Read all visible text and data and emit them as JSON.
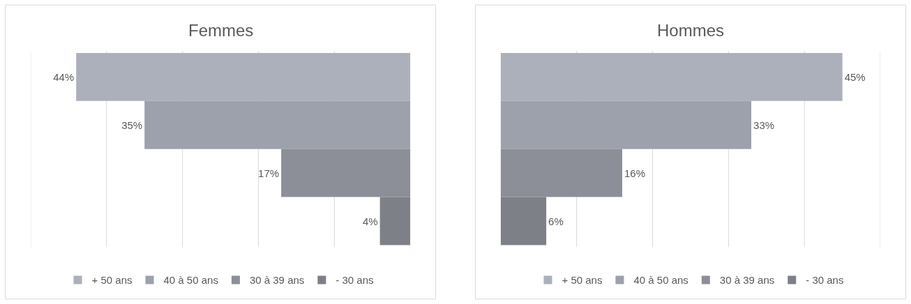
{
  "chart_data": [
    {
      "type": "bar",
      "title": "Femmes",
      "orientation": "horizontal",
      "categories": [
        null
      ],
      "series": [
        {
          "name": "+ 50 ans",
          "color": "#acb0bb",
          "values": [
            44
          ],
          "value_labels": [
            "44%"
          ]
        },
        {
          "name": "40 à 50 ans",
          "color": "#9da1ab",
          "values": [
            35
          ],
          "value_labels": [
            "35%"
          ]
        },
        {
          "name": "30 à 39 ans",
          "color": "#8c8f97",
          "values": [
            17
          ],
          "value_labels": [
            "17%"
          ]
        },
        {
          "name": "- 30 ans",
          "color": "#7d8086",
          "values": [
            4
          ],
          "value_labels": [
            "4%"
          ]
        }
      ],
      "xlim": [
        50,
        0
      ],
      "xticks": [
        {
          "value": 0,
          "label": null
        },
        {
          "value": 10,
          "label": null
        },
        {
          "value": 20,
          "label": null
        },
        {
          "value": 30,
          "label": null
        },
        {
          "value": 40,
          "label": null
        },
        {
          "value": 50,
          "label": null
        }
      ],
      "grid": "x",
      "legend": "bottom"
    },
    {
      "type": "bar",
      "title": "Hommes",
      "orientation": "horizontal",
      "categories": [
        null
      ],
      "series": [
        {
          "name": "+ 50 ans",
          "color": "#acb0bb",
          "values": [
            45
          ],
          "value_labels": [
            "45%"
          ]
        },
        {
          "name": "40 à 50 ans",
          "color": "#9da1ab",
          "values": [
            33
          ],
          "value_labels": [
            "33%"
          ]
        },
        {
          "name": "30 à 39 ans",
          "color": "#8c8f97",
          "values": [
            16
          ],
          "value_labels": [
            "16%"
          ]
        },
        {
          "name": "- 30 ans",
          "color": "#7d8086",
          "values": [
            6
          ],
          "value_labels": [
            "6%"
          ]
        }
      ],
      "xlim": [
        0,
        50
      ],
      "xticks": [
        {
          "value": 0,
          "label": null
        },
        {
          "value": 10,
          "label": null
        },
        {
          "value": 20,
          "label": null
        },
        {
          "value": 30,
          "label": null
        },
        {
          "value": 40,
          "label": null
        },
        {
          "value": 50,
          "label": null
        }
      ],
      "grid": "x",
      "legend": "bottom"
    }
  ]
}
